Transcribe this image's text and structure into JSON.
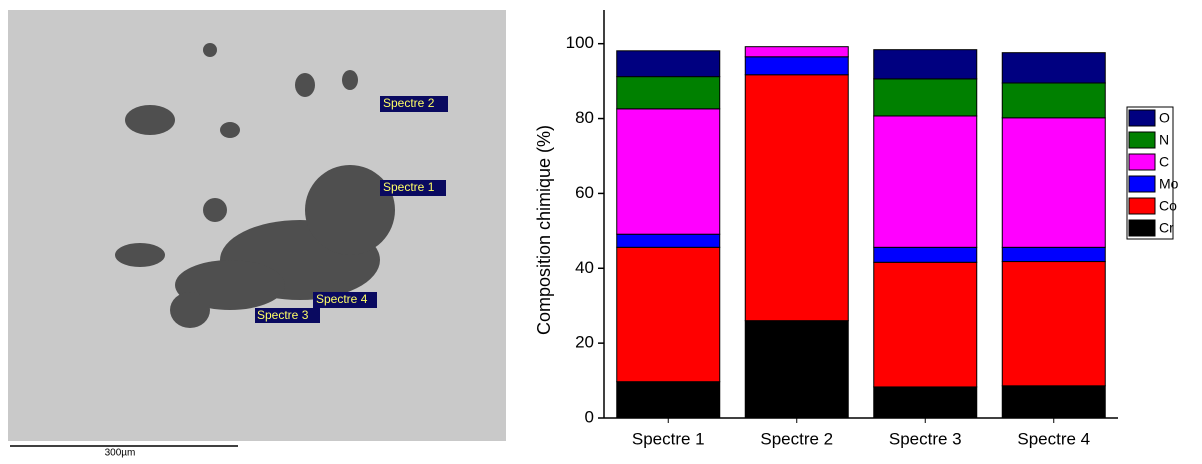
{
  "image": {
    "labels": [
      "Spectre 2",
      "Spectre 1",
      "Spectre 4",
      "Spectre 3"
    ],
    "scale_bar": "300µm"
  },
  "chart_data": {
    "type": "stacked_bar",
    "ylabel": "Composition chimique (%)",
    "categories": [
      "Spectre 1",
      "Spectre 2",
      "Spectre 3",
      "Spectre 4"
    ],
    "series": [
      {
        "name": "Cr",
        "color": "#000000",
        "values": [
          9.7,
          26.0,
          8.3,
          8.6
        ]
      },
      {
        "name": "Co",
        "color": "#ff0000",
        "values": [
          35.9,
          65.7,
          33.3,
          33.2
        ]
      },
      {
        "name": "Mo",
        "color": "#0000ff",
        "values": [
          3.5,
          4.8,
          4.0,
          3.8
        ]
      },
      {
        "name": "C",
        "color": "#ff00ff",
        "values": [
          33.5,
          2.7,
          35.1,
          34.6
        ]
      },
      {
        "name": "N",
        "color": "#008000",
        "values": [
          8.6,
          0,
          9.9,
          9.3
        ]
      },
      {
        "name": "O",
        "color": "#000080",
        "values": [
          6.9,
          0,
          7.8,
          8.1
        ]
      }
    ],
    "ylim": [
      0,
      109
    ],
    "yticks": [
      0,
      20,
      40,
      60,
      80,
      100
    ]
  }
}
